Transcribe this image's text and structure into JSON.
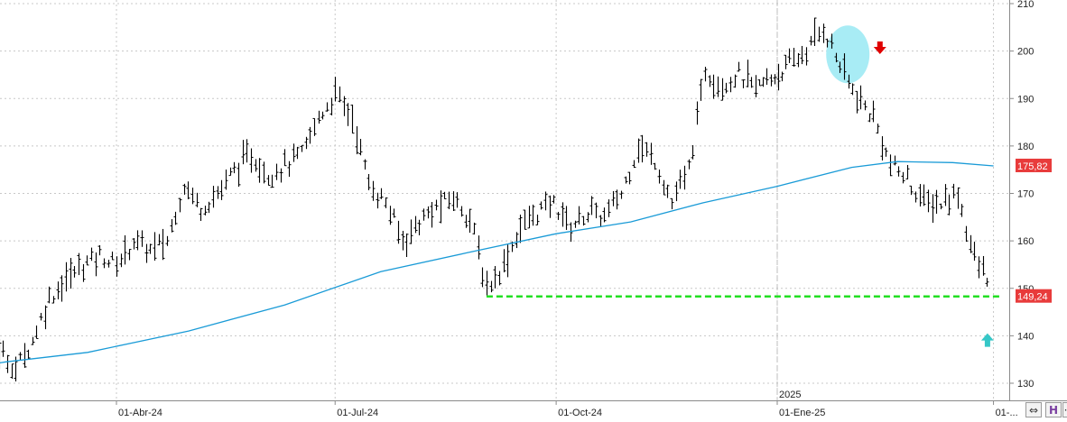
{
  "chart_data": {
    "type": "ohlc",
    "ylim": [
      126,
      212
    ],
    "y_ticks": [
      130,
      140,
      150,
      160,
      170,
      180,
      190,
      200,
      210
    ],
    "x_ticks": [
      {
        "date": "2024-04-01",
        "label": "01-Abr-24"
      },
      {
        "date": "2024-07-01",
        "label": "01-Jul-24"
      },
      {
        "date": "2024-10-01",
        "label": "01-Oct-24"
      },
      {
        "date": "2025-01-01",
        "label": "01-Ene-25"
      },
      {
        "date": "2025-04-01",
        "label": "01-..."
      }
    ],
    "year_marker": {
      "date": "2025-01-01",
      "label": "2025"
    },
    "grid": true,
    "price_series": [
      {
        "date": "2024-01-22",
        "close": 147
      },
      {
        "date": "2024-01-29",
        "close": 144
      },
      {
        "date": "2024-02-05",
        "close": 141
      },
      {
        "date": "2024-02-12",
        "close": 137
      },
      {
        "date": "2024-02-19",
        "close": 133
      },
      {
        "date": "2024-02-26",
        "close": 139
      },
      {
        "date": "2024-03-04",
        "close": 148
      },
      {
        "date": "2024-03-11",
        "close": 152
      },
      {
        "date": "2024-03-18",
        "close": 155
      },
      {
        "date": "2024-03-25",
        "close": 157
      },
      {
        "date": "2024-04-01",
        "close": 155
      },
      {
        "date": "2024-04-08",
        "close": 160
      },
      {
        "date": "2024-04-15",
        "close": 158
      },
      {
        "date": "2024-04-22",
        "close": 160
      },
      {
        "date": "2024-04-29",
        "close": 172
      },
      {
        "date": "2024-05-06",
        "close": 167
      },
      {
        "date": "2024-05-13",
        "close": 170
      },
      {
        "date": "2024-05-20",
        "close": 175
      },
      {
        "date": "2024-05-27",
        "close": 178
      },
      {
        "date": "2024-06-03",
        "close": 174
      },
      {
        "date": "2024-06-10",
        "close": 176
      },
      {
        "date": "2024-06-17",
        "close": 178
      },
      {
        "date": "2024-06-24",
        "close": 186
      },
      {
        "date": "2024-07-01",
        "close": 191
      },
      {
        "date": "2024-07-08",
        "close": 186
      },
      {
        "date": "2024-07-15",
        "close": 172
      },
      {
        "date": "2024-07-22",
        "close": 168
      },
      {
        "date": "2024-07-29",
        "close": 160
      },
      {
        "date": "2024-08-05",
        "close": 164
      },
      {
        "date": "2024-08-12",
        "close": 167
      },
      {
        "date": "2024-08-19",
        "close": 169
      },
      {
        "date": "2024-08-26",
        "close": 165
      },
      {
        "date": "2024-09-02",
        "close": 150
      },
      {
        "date": "2024-09-09",
        "close": 155
      },
      {
        "date": "2024-09-16",
        "close": 163
      },
      {
        "date": "2024-09-23",
        "close": 166
      },
      {
        "date": "2024-09-30",
        "close": 168
      },
      {
        "date": "2024-10-07",
        "close": 163
      },
      {
        "date": "2024-10-14",
        "close": 166
      },
      {
        "date": "2024-10-21",
        "close": 165
      },
      {
        "date": "2024-10-28",
        "close": 170
      },
      {
        "date": "2024-11-04",
        "close": 180
      },
      {
        "date": "2024-11-11",
        "close": 177
      },
      {
        "date": "2024-11-18",
        "close": 168
      },
      {
        "date": "2024-11-25",
        "close": 175
      },
      {
        "date": "2024-12-02",
        "close": 196
      },
      {
        "date": "2024-12-09",
        "close": 193
      },
      {
        "date": "2024-12-16",
        "close": 195
      },
      {
        "date": "2024-12-23",
        "close": 192
      },
      {
        "date": "2025-01-06",
        "close": 197
      },
      {
        "date": "2025-01-13",
        "close": 200
      },
      {
        "date": "2025-01-20",
        "close": 205
      },
      {
        "date": "2025-01-27",
        "close": 197
      },
      {
        "date": "2025-02-03",
        "close": 190
      },
      {
        "date": "2025-02-10",
        "close": 186
      },
      {
        "date": "2025-02-17",
        "close": 176
      },
      {
        "date": "2025-02-24",
        "close": 173
      },
      {
        "date": "2025-03-03",
        "close": 168
      },
      {
        "date": "2025-03-10",
        "close": 168
      },
      {
        "date": "2025-03-17",
        "close": 170
      },
      {
        "date": "2025-03-24",
        "close": 156
      },
      {
        "date": "2025-03-31",
        "close": 151
      }
    ],
    "moving_average": [
      {
        "date": "2024-01-10",
        "value": 131.5
      },
      {
        "date": "2024-02-15",
        "value": 134.5
      },
      {
        "date": "2024-03-20",
        "value": 136.5
      },
      {
        "date": "2024-05-01",
        "value": 141
      },
      {
        "date": "2024-06-10",
        "value": 146.5
      },
      {
        "date": "2024-07-20",
        "value": 153.5
      },
      {
        "date": "2024-08-25",
        "value": 157.5
      },
      {
        "date": "2024-10-01",
        "value": 161.5
      },
      {
        "date": "2024-11-01",
        "value": 164
      },
      {
        "date": "2024-12-01",
        "value": 168
      },
      {
        "date": "2025-01-01",
        "value": 171.5
      },
      {
        "date": "2025-02-01",
        "value": 175.5
      },
      {
        "date": "2025-02-20",
        "value": 176.7
      },
      {
        "date": "2025-03-15",
        "value": 176.5
      },
      {
        "date": "2025-04-01",
        "value": 175.8
      }
    ],
    "moving_average_label": "175,82",
    "last_price_label": "149,24",
    "support_line": {
      "value": 148.3,
      "from": "2024-09-02",
      "to": "2025-04-01"
    },
    "highlight_circle": {
      "date": "2025-01-27",
      "value": 199.5
    },
    "sell_arrow": {
      "date": "2025-02-12",
      "value": 200.5
    },
    "buy_arrow": {
      "date": "2025-03-31",
      "value": 139
    },
    "colors": {
      "bars": "#000000",
      "moving_average": "#1a9bd7",
      "support_line": "#22e022",
      "price_tag": "#e83b3b",
      "highlight_circle": "#a8ecf5",
      "sell_arrow": "#e00000",
      "buy_arrow": "#35c7c7",
      "grid": "#c8c8c8",
      "axis": "#8a8a8a"
    }
  },
  "controls": {
    "zoom_icon": "⇔",
    "h_icon": "H",
    "extra_icon": "·"
  }
}
